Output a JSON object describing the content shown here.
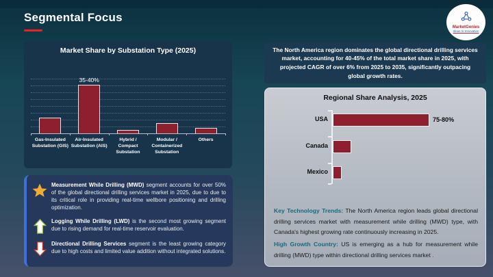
{
  "header": {
    "title": "Segmental Focus"
  },
  "logo": {
    "brand": "MarketGenies",
    "tagline": "Ideas to Innovation"
  },
  "colors": {
    "bar_red": "#8e1f2e",
    "accent_red": "#e8212b",
    "bullet_border_blue": "#3f6fd8",
    "teal_lead": "#17697d",
    "panel_navy": "#17344b",
    "gray_panel": "#b3b9c2"
  },
  "chart_data": [
    {
      "type": "bar",
      "title": "Market Share by Substation Type (2025)",
      "categories": [
        "Gas-Insulated Substation (GIS)",
        "Air-Insulated Substation (AIS)",
        "Hybrid / Compact Substation",
        "Modular / Containerized Substation",
        "Others"
      ],
      "values": [
        12,
        37.5,
        2.5,
        8,
        4.5
      ],
      "data_labels": [
        "",
        "35-40%",
        "",
        "",
        ""
      ],
      "xlabel": "",
      "ylabel": "",
      "ylim": [
        0,
        45
      ],
      "grid": "dotted-horizontal",
      "legend": "none",
      "bar_color": "#8e1f2e"
    },
    {
      "type": "bar-horizontal",
      "title": "Regional Share Analysis, 2025",
      "categories": [
        "USA",
        "Canada",
        "Mexico"
      ],
      "values": [
        77.5,
        15,
        7
      ],
      "data_labels": [
        "75-80%",
        "",
        ""
      ],
      "xlabel": "",
      "ylabel": "",
      "xlim": [
        0,
        100
      ],
      "grid": "off",
      "legend": "none",
      "bar_color": "#8e1f2e"
    }
  ],
  "na_summary": {
    "text": "The North America region dominates the global directional drilling services market, accounting for 40-45% of the total market share in 2025, with projected CAGR of over 6% from 2025 to 2035, significantly outpacing global growth rates."
  },
  "bullets": [
    {
      "icon": "star-icon",
      "lead": "Measurement While Drilling (MWD)",
      "rest": " segment accounts for over 50% of the global directional drilling services market in 2025, due to due to its critical role in providing real-time wellbore positioning and drilling optimization."
    },
    {
      "icon": "up-arrow-icon",
      "lead": "Logging While Drilling (LWD)",
      "rest": " is the second most growing segment due to rising demand for real-time reservoir evaluation."
    },
    {
      "icon": "down-arrow-icon",
      "lead": "Directional Drilling Services",
      "rest": " segment is the least growing category due to high costs and limited value addition without integrated solutions."
    }
  ],
  "insights": [
    {
      "lead": "Key Technology Trends:",
      "rest": " The North America region leads global directional drilling services market with measurement while drilling (MWD) type, with Canada's highest growing rate continuously increasing in 2025.",
      "suffix": ""
    },
    {
      "lead": "High Growth Country:",
      "rest": " US is emerging as a hub for measurement while drilling (MWD) type within directional drilling services market",
      "suffix": " ."
    }
  ]
}
